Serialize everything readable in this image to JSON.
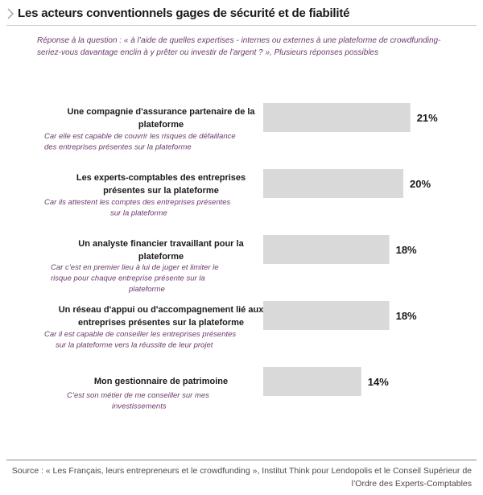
{
  "title": "Les acteurs conventionnels gages de sécurité et de fiabilité",
  "question": "Réponse à la question : « à l’aide de quelles expertises - internes ou externes à une plateforme de crowdfunding- seriez-vous davantage enclin à y prêter ou investir de l’argent ? », Plusieurs réponses possibles",
  "source": "Source : « Les Français, leurs entrepreneurs et le crowdfunding », Institut Think pour Lendopolis et le Conseil Supérieur de l’Ordre des Experts-Comptables",
  "colors": {
    "bar": "#d9d9d9",
    "subtitle": "#6b3a6f",
    "label": "#1a1a1a"
  },
  "chart_data": {
    "type": "bar",
    "orientation": "horizontal",
    "categories": [
      "Une compagnie d'assurance partenaire de la plateforme",
      "Les experts-comptables des entreprises présentes sur la plateforme",
      "Un analyste financier travaillant pour la plateforme",
      "Un réseau d'appui ou d'accompagnement lié aux entreprises présentes sur la plateforme",
      "Mon gestionnaire de patrimoine"
    ],
    "values": [
      21,
      20,
      18,
      18,
      14
    ],
    "unit": "%",
    "data_labels": [
      "21%",
      "20%",
      "18%",
      "18%",
      "14%"
    ],
    "explanations": [
      "Car elle est capable de couvrir les risques de défaillance des entreprises présentes sur la plateforme",
      "Car ils attestent les comptes des entreprises présentes sur la plateforme",
      "Car c’est en premier lieu à lui de juger et limiter le risque pour chaque entreprise présente sur la plateforme",
      "Car il est capable de conseiller les entreprises présentes sur la plateforme vers la réussite de leur projet",
      "C’est son métier de me conseiller sur mes investissements"
    ]
  }
}
